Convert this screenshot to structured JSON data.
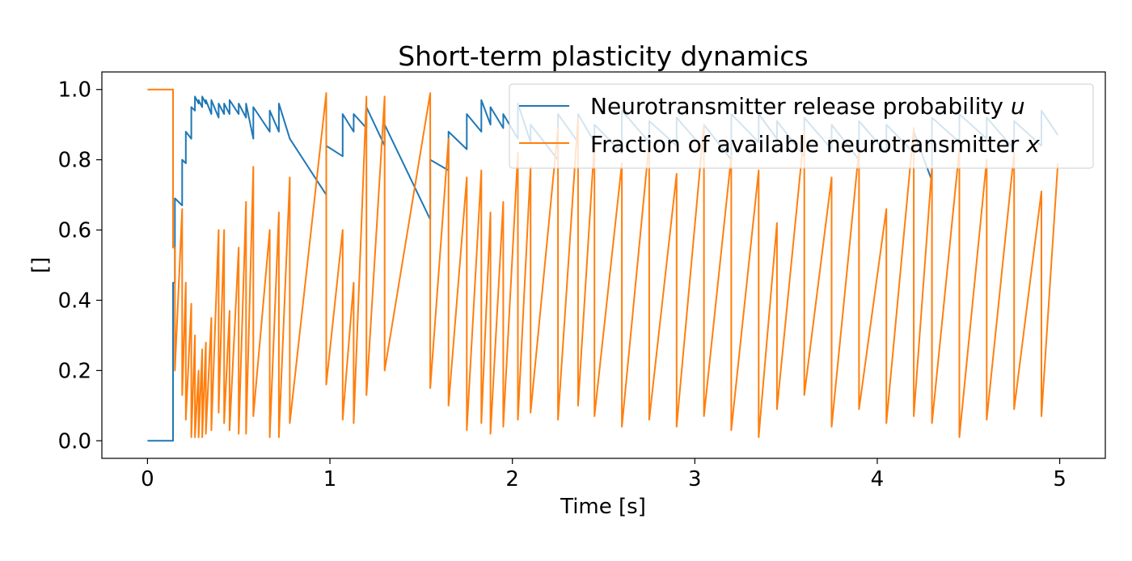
{
  "chart_data": {
    "type": "line",
    "title": "Short-term plasticity dynamics",
    "xlabel": "Time [s]",
    "ylabel": "[]",
    "xlim": [
      -0.25,
      5.25
    ],
    "ylim": [
      -0.05,
      1.05
    ],
    "xticks": [
      0,
      1,
      2,
      3,
      4,
      5
    ],
    "yticks": [
      0.0,
      0.2,
      0.4,
      0.6,
      0.8,
      1.0
    ],
    "xtick_labels": [
      "0",
      "1",
      "2",
      "3",
      "4",
      "5"
    ],
    "ytick_labels": [
      "0.0",
      "0.2",
      "0.4",
      "0.6",
      "0.8",
      "1.0"
    ],
    "grid": false,
    "legend_position": "top-right",
    "series": [
      {
        "name": "Neurotransmitter release probability u",
        "legend_prefix": "Neurotransmitter release probability ",
        "legend_var": "u",
        "color": "#1f77b4",
        "x": [
          0,
          0.14,
          0.14,
          0.15,
          0.15,
          0.19,
          0.19,
          0.21,
          0.21,
          0.24,
          0.24,
          0.26,
          0.26,
          0.28,
          0.28,
          0.3,
          0.3,
          0.32,
          0.32,
          0.35,
          0.35,
          0.39,
          0.39,
          0.42,
          0.42,
          0.45,
          0.45,
          0.5,
          0.5,
          0.54,
          0.54,
          0.58,
          0.58,
          0.67,
          0.67,
          0.72,
          0.72,
          0.78,
          0.78,
          0.98,
          0.98,
          1.07,
          1.07,
          1.13,
          1.13,
          1.2,
          1.2,
          1.3,
          1.3,
          1.55,
          1.55,
          1.65,
          1.65,
          1.75,
          1.75,
          1.83,
          1.83,
          1.88,
          1.88,
          1.95,
          1.95,
          2.03,
          2.03,
          2.1,
          2.1,
          2.25,
          2.25,
          2.36,
          2.36,
          2.45,
          2.45,
          2.6,
          2.6,
          2.75,
          2.75,
          2.9,
          2.9,
          3.05,
          3.05,
          3.2,
          3.2,
          3.35,
          3.35,
          3.45,
          3.45,
          3.6,
          3.6,
          3.75,
          3.75,
          3.9,
          3.9,
          4.05,
          4.05,
          4.2,
          4.2,
          4.3,
          4.3,
          4.45,
          4.45,
          4.6,
          4.6,
          4.75,
          4.75,
          4.9,
          4.9,
          4.99
        ],
        "y": [
          0,
          0,
          0.45,
          0.45,
          0.69,
          0.67,
          0.8,
          0.79,
          0.88,
          0.86,
          0.95,
          0.94,
          0.98,
          0.96,
          0.97,
          0.95,
          0.98,
          0.96,
          0.97,
          0.93,
          0.97,
          0.92,
          0.96,
          0.93,
          0.96,
          0.93,
          0.97,
          0.93,
          0.96,
          0.92,
          0.96,
          0.86,
          0.95,
          0.88,
          0.94,
          0.88,
          0.96,
          0.86,
          0.86,
          0.7,
          0.84,
          0.81,
          0.93,
          0.88,
          0.93,
          0.89,
          0.95,
          0.84,
          0.9,
          0.63,
          0.8,
          0.77,
          0.88,
          0.83,
          0.93,
          0.88,
          0.97,
          0.9,
          0.95,
          0.89,
          0.93,
          0.86,
          0.96,
          0.85,
          0.9,
          0.8,
          0.93,
          0.85,
          0.93,
          0.85,
          0.9,
          0.82,
          0.94,
          0.85,
          0.91,
          0.84,
          0.92,
          0.83,
          0.9,
          0.8,
          0.93,
          0.85,
          0.93,
          0.86,
          0.91,
          0.81,
          0.92,
          0.83,
          0.9,
          0.8,
          0.91,
          0.82,
          0.9,
          0.82,
          0.88,
          0.74,
          0.92,
          0.85,
          0.93,
          0.86,
          0.92,
          0.83,
          0.91,
          0.84,
          0.94,
          0.87
        ]
      },
      {
        "name": "Fraction of available neurotransmitter x",
        "legend_prefix": "Fraction of available neurotransmitter ",
        "legend_var": "x",
        "color": "#ff7f0e",
        "x": [
          0,
          0.14,
          0.14,
          0.15,
          0.15,
          0.19,
          0.19,
          0.21,
          0.21,
          0.24,
          0.24,
          0.26,
          0.26,
          0.28,
          0.28,
          0.3,
          0.3,
          0.32,
          0.32,
          0.35,
          0.35,
          0.39,
          0.39,
          0.42,
          0.42,
          0.45,
          0.45,
          0.5,
          0.5,
          0.54,
          0.54,
          0.58,
          0.58,
          0.67,
          0.67,
          0.72,
          0.72,
          0.78,
          0.78,
          0.98,
          0.98,
          1.07,
          1.07,
          1.13,
          1.13,
          1.2,
          1.2,
          1.3,
          1.3,
          1.55,
          1.55,
          1.65,
          1.65,
          1.75,
          1.75,
          1.83,
          1.83,
          1.88,
          1.88,
          1.95,
          1.95,
          2.03,
          2.03,
          2.1,
          2.1,
          2.25,
          2.25,
          2.36,
          2.36,
          2.45,
          2.45,
          2.6,
          2.6,
          2.75,
          2.75,
          2.9,
          2.9,
          3.05,
          3.05,
          3.2,
          3.2,
          3.35,
          3.35,
          3.45,
          3.45,
          3.6,
          3.6,
          3.75,
          3.75,
          3.9,
          3.9,
          4.05,
          4.05,
          4.2,
          4.2,
          4.3,
          4.3,
          4.45,
          4.45,
          4.6,
          4.6,
          4.75,
          4.75,
          4.9,
          4.9,
          4.99
        ],
        "y": [
          1.0,
          1.0,
          0.55,
          0.55,
          0.2,
          0.66,
          0.13,
          0.45,
          0.06,
          0.39,
          0.01,
          0.3,
          0.01,
          0.2,
          0.01,
          0.26,
          0.01,
          0.28,
          0.02,
          0.35,
          0.03,
          0.6,
          0.08,
          0.6,
          0.05,
          0.37,
          0.03,
          0.55,
          0.02,
          0.68,
          0.02,
          0.78,
          0.07,
          0.6,
          0.01,
          0.65,
          0.01,
          0.75,
          0.05,
          0.99,
          0.16,
          0.6,
          0.06,
          0.45,
          0.05,
          0.98,
          0.13,
          0.98,
          0.2,
          0.99,
          0.15,
          0.86,
          0.1,
          0.75,
          0.03,
          0.77,
          0.05,
          0.65,
          0.02,
          0.68,
          0.04,
          0.82,
          0.06,
          0.78,
          0.08,
          0.89,
          0.06,
          0.92,
          0.1,
          0.85,
          0.07,
          0.79,
          0.04,
          0.85,
          0.06,
          0.76,
          0.04,
          0.9,
          0.07,
          0.81,
          0.03,
          0.77,
          0.01,
          0.62,
          0.09,
          0.88,
          0.13,
          0.75,
          0.04,
          0.83,
          0.09,
          0.66,
          0.05,
          0.89,
          0.07,
          0.78,
          0.05,
          0.83,
          0.01,
          0.8,
          0.06,
          0.82,
          0.09,
          0.71,
          0.07,
          0.79
        ]
      }
    ]
  }
}
